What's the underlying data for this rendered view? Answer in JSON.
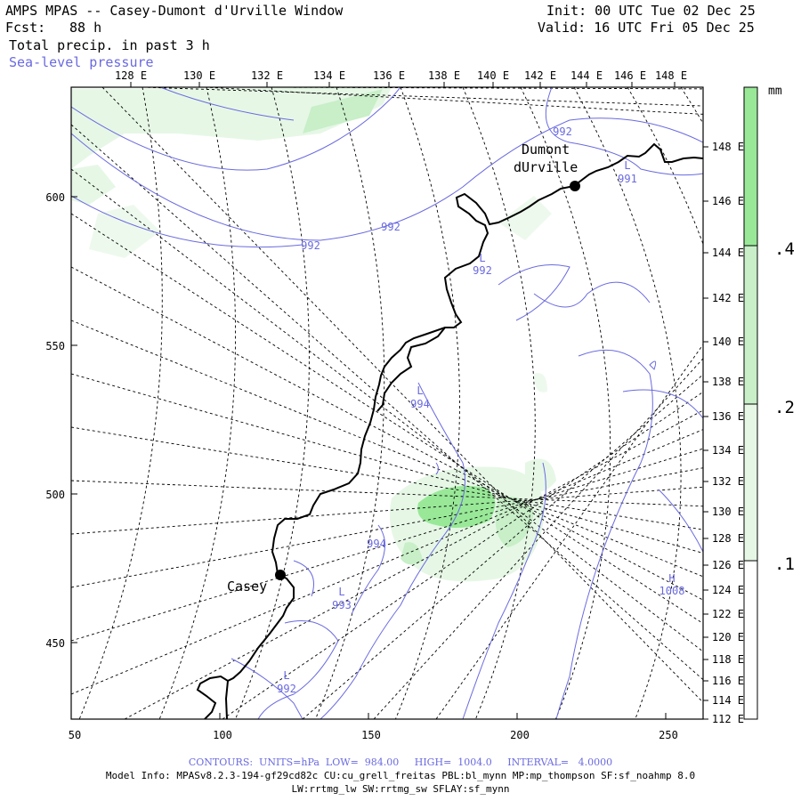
{
  "header": {
    "title": "AMPS MPAS -- Casey-Dumont d'Urville Window",
    "forecast_label": "Fcst:",
    "forecast_value": "88 h",
    "field_label": "Total precip. in past 3 h",
    "overlay_label": "Sea-level pressure",
    "init": "Init: 00 UTC Tue 02 Dec 25",
    "valid": "Valid: 16 UTC Fri 05 Dec 25"
  },
  "colors": {
    "precip_light": "#e6f7e6",
    "precip_medium": "#c8efc8",
    "precip_heavy": "#98e898",
    "pressure_contour": "#6a6ae0",
    "coastline": "#000000",
    "graticule": "#000000"
  },
  "map": {
    "x_axis_labels": [
      "50",
      "100",
      "150",
      "200",
      "250"
    ],
    "y_axis_labels": [
      "600",
      "550",
      "500",
      "450"
    ],
    "top_longitude_labels": [
      "128 E",
      "130 E",
      "132 E",
      "134 E",
      "136 E",
      "138 E",
      "140 E",
      "142 E",
      "144 E",
      "146 E",
      "148 E"
    ],
    "right_longitude_labels": [
      "148 E",
      "146 E",
      "144 E",
      "142 E",
      "140 E",
      "138 E",
      "136 E",
      "134 E",
      "132 E",
      "130 E",
      "128 E",
      "126 E",
      "124 E",
      "122 E",
      "120 E",
      "118 E",
      "116 E",
      "114 E",
      "112 E"
    ],
    "stations": [
      {
        "name": "Casey"
      },
      {
        "name_line1": "Dumont",
        "name_line2": "dUrville"
      }
    ],
    "pressure_labels": [
      {
        "text": "992"
      },
      {
        "text": "992"
      },
      {
        "text": "992"
      },
      {
        "text": "L",
        "value": "991"
      },
      {
        "text": "L",
        "value": "992"
      },
      {
        "text": "L",
        "value": "994"
      },
      {
        "text": "994"
      },
      {
        "text": "L",
        "value": "993"
      },
      {
        "text": "L",
        "value": "992"
      },
      {
        "text": "H",
        "value": "1008"
      }
    ]
  },
  "colorbar": {
    "unit": "mm",
    "labels": [
      ".4",
      ".2",
      ".1"
    ]
  },
  "footer": {
    "contours": "CONTOURS:  UNITS=hPa  LOW=  984.00     HIGH=  1004.0     INTERVAL=   4.0000",
    "model_info": "Model Info: MPASv8.2.3-194-gf29cd82c CU:cu_grell_freitas PBL:bl_mynn MP:mp_thompson SF:sf_noahmp 8.0",
    "model_info2": "LW:rrtmg_lw SW:rrtmg_sw SFLAY:sf_mynn"
  }
}
